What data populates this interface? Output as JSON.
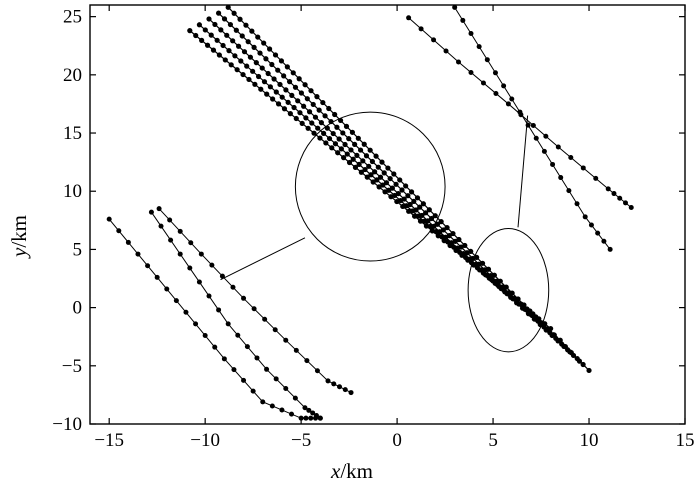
{
  "chart_data": {
    "type": "scatter",
    "title": "",
    "xlabel_var": "x",
    "xlabel_unit": "/km",
    "ylabel_var": "y",
    "ylabel_unit": "/km",
    "xlim": [
      -16,
      15
    ],
    "ylim": [
      -10,
      26
    ],
    "xticks": [
      -15,
      -10,
      -5,
      0,
      5,
      10,
      15
    ],
    "yticks": [
      -10,
      -5,
      0,
      5,
      10,
      15,
      20,
      25
    ],
    "xtick_labels": [
      "−15",
      "−10",
      "−5",
      "0",
      "5",
      "10",
      "15"
    ],
    "ytick_labels": [
      "−10",
      "−5",
      "0",
      "5",
      "10",
      "15",
      "20",
      "25"
    ],
    "grid": false,
    "legend": "none",
    "colors": {
      "marker": "#000000",
      "line": "#000000"
    },
    "main_tracks": [
      {
        "start": [
          -10.8,
          23.8
        ],
        "end": [
          8.0,
          -1.8
        ],
        "points": 62
      },
      {
        "start": [
          -10.3,
          24.3
        ],
        "end": [
          8.5,
          -2.8
        ],
        "points": 62
      },
      {
        "start": [
          -9.8,
          24.8
        ],
        "end": [
          9.0,
          -3.8
        ],
        "points": 62
      },
      {
        "start": [
          -9.3,
          25.3
        ],
        "end": [
          9.5,
          -4.6
        ],
        "points": 62
      },
      {
        "start": [
          -8.8,
          25.8
        ],
        "end": [
          10.0,
          -5.4
        ],
        "points": 62
      }
    ],
    "zoom_circles": [
      {
        "center": [
          -1.4,
          10.4
        ],
        "radii": [
          3.9,
          6.4
        ]
      },
      {
        "center": [
          5.8,
          1.5
        ],
        "radii": [
          2.1,
          5.3
        ]
      }
    ],
    "inset_upper_right": [
      {
        "x": [
          0.6,
          3.2,
          5.8,
          8.4,
          11.0,
          12.2
        ],
        "y": [
          24.9,
          21.1,
          17.5,
          13.8,
          10.2,
          8.6
        ]
      },
      {
        "x": [
          3.0,
          4.7,
          6.4,
          8.1,
          9.8,
          11.1
        ],
        "y": [
          25.8,
          21.3,
          16.8,
          12.3,
          7.8,
          5.0
        ]
      }
    ],
    "inset_lower_left": [
      {
        "x": [
          -15.0,
          -13.0,
          -11.0,
          -9.0,
          -7.0,
          -5.0,
          -4.0
        ],
        "y": [
          7.6,
          3.6,
          -0.4,
          -4.4,
          -8.1,
          -9.5,
          -9.5
        ]
      },
      {
        "x": [
          -12.8,
          -10.8,
          -8.8,
          -6.8,
          -4.8,
          -4.0
        ],
        "y": [
          8.2,
          3.4,
          -1.4,
          -5.3,
          -8.6,
          -9.5
        ]
      },
      {
        "x": [
          -12.4,
          -10.2,
          -8.0,
          -5.8,
          -3.6,
          -2.4
        ],
        "y": [
          8.5,
          4.6,
          0.8,
          -2.8,
          -6.3,
          -7.3
        ]
      }
    ],
    "connectors": [
      {
        "from": [
          -9.2,
          2.4
        ],
        "to": [
          -4.8,
          6.0
        ]
      },
      {
        "from": [
          6.8,
          16.5
        ],
        "to": [
          6.3,
          6.9
        ]
      }
    ]
  }
}
